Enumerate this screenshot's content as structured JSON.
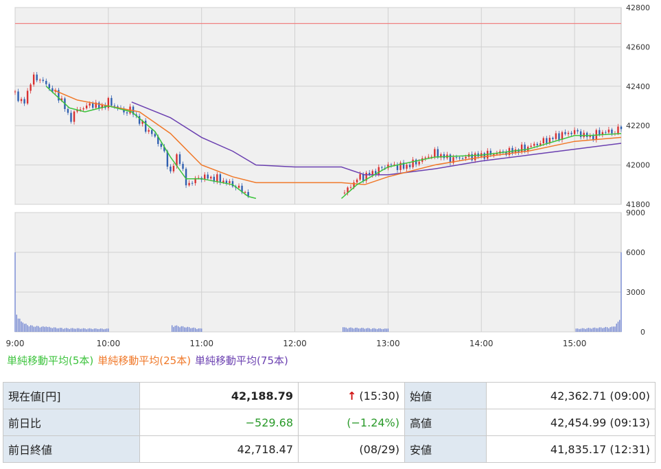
{
  "chart_data": {
    "type": "candlestick",
    "x_ticks": [
      "9:00",
      "10:00",
      "11:00",
      "12:00",
      "13:00",
      "14:00",
      "15:00"
    ],
    "price_axis": {
      "ylim": [
        41800,
        42800
      ],
      "ticks": [
        "41800",
        "42000",
        "42200",
        "42400",
        "42600",
        "42800"
      ]
    },
    "volume_axis": {
      "ylim": [
        0,
        9000
      ],
      "ticks": [
        "0",
        "3000",
        "6000",
        "9000"
      ]
    },
    "previous_close": 42718.47,
    "series_names": [
      "単純移動平均(5本)",
      "単純移動平均(25本)",
      "単純移動平均(75本)"
    ],
    "colors": {
      "ma5": "#3cc33c",
      "ma25": "#f07828",
      "ma75": "#6a3fb0",
      "up": "#d93030",
      "down": "#2f5fb0",
      "prev_close": "#f08080",
      "volume": "#6a7fd0"
    },
    "price_series": [
      [
        "9:00",
        42370
      ],
      [
        "9:05",
        42300
      ],
      [
        "9:10",
        42420
      ],
      [
        "9:13",
        42450
      ],
      [
        "9:20",
        42410
      ],
      [
        "9:30",
        42330
      ],
      [
        "9:35",
        42230
      ],
      [
        "9:40",
        42280
      ],
      [
        "9:50",
        42310
      ],
      [
        "9:55",
        42290
      ],
      [
        "10:00",
        42320
      ],
      [
        "10:10",
        42270
      ],
      [
        "10:15",
        42280
      ],
      [
        "10:20",
        42220
      ],
      [
        "10:30",
        42140
      ],
      [
        "10:35",
        42080
      ],
      [
        "10:40",
        41960
      ],
      [
        "10:45",
        42060
      ],
      [
        "10:50",
        41900
      ],
      [
        "11:00",
        41940
      ],
      [
        "11:10",
        41930
      ],
      [
        "11:20",
        41900
      ],
      [
        "11:30",
        41850
      ],
      [
        "12:30",
        41840
      ],
      [
        "12:40",
        41930
      ],
      [
        "12:50",
        41960
      ],
      [
        "13:00",
        42000
      ],
      [
        "13:10",
        41990
      ],
      [
        "13:20",
        42020
      ],
      [
        "13:30",
        42060
      ],
      [
        "13:40",
        42030
      ],
      [
        "13:50",
        42040
      ],
      [
        "14:00",
        42050
      ],
      [
        "14:10",
        42060
      ],
      [
        "14:20",
        42070
      ],
      [
        "14:30",
        42090
      ],
      [
        "14:40",
        42120
      ],
      [
        "14:50",
        42150
      ],
      [
        "15:00",
        42170
      ],
      [
        "15:10",
        42140
      ],
      [
        "15:15",
        42160
      ],
      [
        "15:20",
        42170
      ],
      [
        "15:25",
        42165
      ],
      [
        "15:30",
        42190
      ]
    ],
    "ma5": [
      [
        "9:20",
        42400
      ],
      [
        "9:35",
        42290
      ],
      [
        "9:45",
        42270
      ],
      [
        "10:00",
        42300
      ],
      [
        "10:15",
        42270
      ],
      [
        "10:30",
        42170
      ],
      [
        "10:40",
        42040
      ],
      [
        "10:50",
        41930
      ],
      [
        "11:00",
        41930
      ],
      [
        "11:20",
        41900
      ],
      [
        "11:30",
        41840
      ],
      [
        "11:35",
        41830
      ],
      [
        "12:30",
        41830
      ],
      [
        "12:40",
        41900
      ],
      [
        "13:00",
        41990
      ],
      [
        "13:30",
        42040
      ],
      [
        "14:00",
        42050
      ],
      [
        "14:30",
        42080
      ],
      [
        "15:00",
        42150
      ],
      [
        "15:10",
        42150
      ],
      [
        "15:30",
        42160
      ]
    ],
    "ma25": [
      [
        "9:25",
        42380
      ],
      [
        "9:40",
        42330
      ],
      [
        "10:00",
        42300
      ],
      [
        "10:20",
        42270
      ],
      [
        "10:40",
        42160
      ],
      [
        "11:00",
        42000
      ],
      [
        "11:20",
        41940
      ],
      [
        "11:35",
        41910
      ],
      [
        "12:00",
        41910
      ],
      [
        "12:30",
        41910
      ],
      [
        "12:45",
        41900
      ],
      [
        "13:00",
        41940
      ],
      [
        "13:30",
        42000
      ],
      [
        "14:00",
        42040
      ],
      [
        "14:30",
        42070
      ],
      [
        "15:00",
        42120
      ],
      [
        "15:30",
        42140
      ]
    ],
    "ma75": [
      [
        "10:15",
        42320
      ],
      [
        "10:40",
        42240
      ],
      [
        "11:00",
        42140
      ],
      [
        "11:20",
        42070
      ],
      [
        "11:35",
        42000
      ],
      [
        "12:00",
        41990
      ],
      [
        "12:30",
        41990
      ],
      [
        "12:45",
        41950
      ],
      [
        "13:00",
        41950
      ],
      [
        "13:30",
        41980
      ],
      [
        "14:00",
        42020
      ],
      [
        "14:30",
        42050
      ],
      [
        "15:00",
        42080
      ],
      [
        "15:30",
        42110
      ]
    ],
    "volume_series": [
      [
        "9:00",
        6000
      ],
      [
        "9:01",
        1300
      ],
      [
        "9:05",
        700
      ],
      [
        "9:10",
        500
      ],
      [
        "9:20",
        400
      ],
      [
        "9:30",
        300
      ],
      [
        "10:00",
        250
      ],
      [
        "10:40",
        550
      ],
      [
        "11:00",
        250
      ],
      [
        "11:35",
        250
      ],
      [
        "12:30",
        3100
      ],
      [
        "12:31",
        350
      ],
      [
        "13:00",
        250
      ],
      [
        "14:00",
        230
      ],
      [
        "15:00",
        250
      ],
      [
        "15:25",
        400
      ],
      [
        "15:29",
        900
      ],
      [
        "15:30",
        6000
      ]
    ]
  },
  "legend": {
    "ma5": "単純移動平均(5本)",
    "ma25": "単純移動平均(25本)",
    "ma75": "単純移動平均(75本)"
  },
  "quote": {
    "current_label": "現在値[円]",
    "current_value": "42,188.79",
    "current_arrow": "↑",
    "current_time": "(15:30)",
    "open_label": "始値",
    "open_value": "42,362.71 (09:00)",
    "change_label": "前日比",
    "change_value": "−529.68",
    "change_pct": "(−1.24%)",
    "high_label": "高値",
    "high_value": "42,454.99 (09:13)",
    "prev_close_label": "前日終値",
    "prev_close_value": "42,718.47",
    "prev_close_date": "(08/29)",
    "low_label": "安値",
    "low_value": "41,835.17 (12:31)"
  }
}
